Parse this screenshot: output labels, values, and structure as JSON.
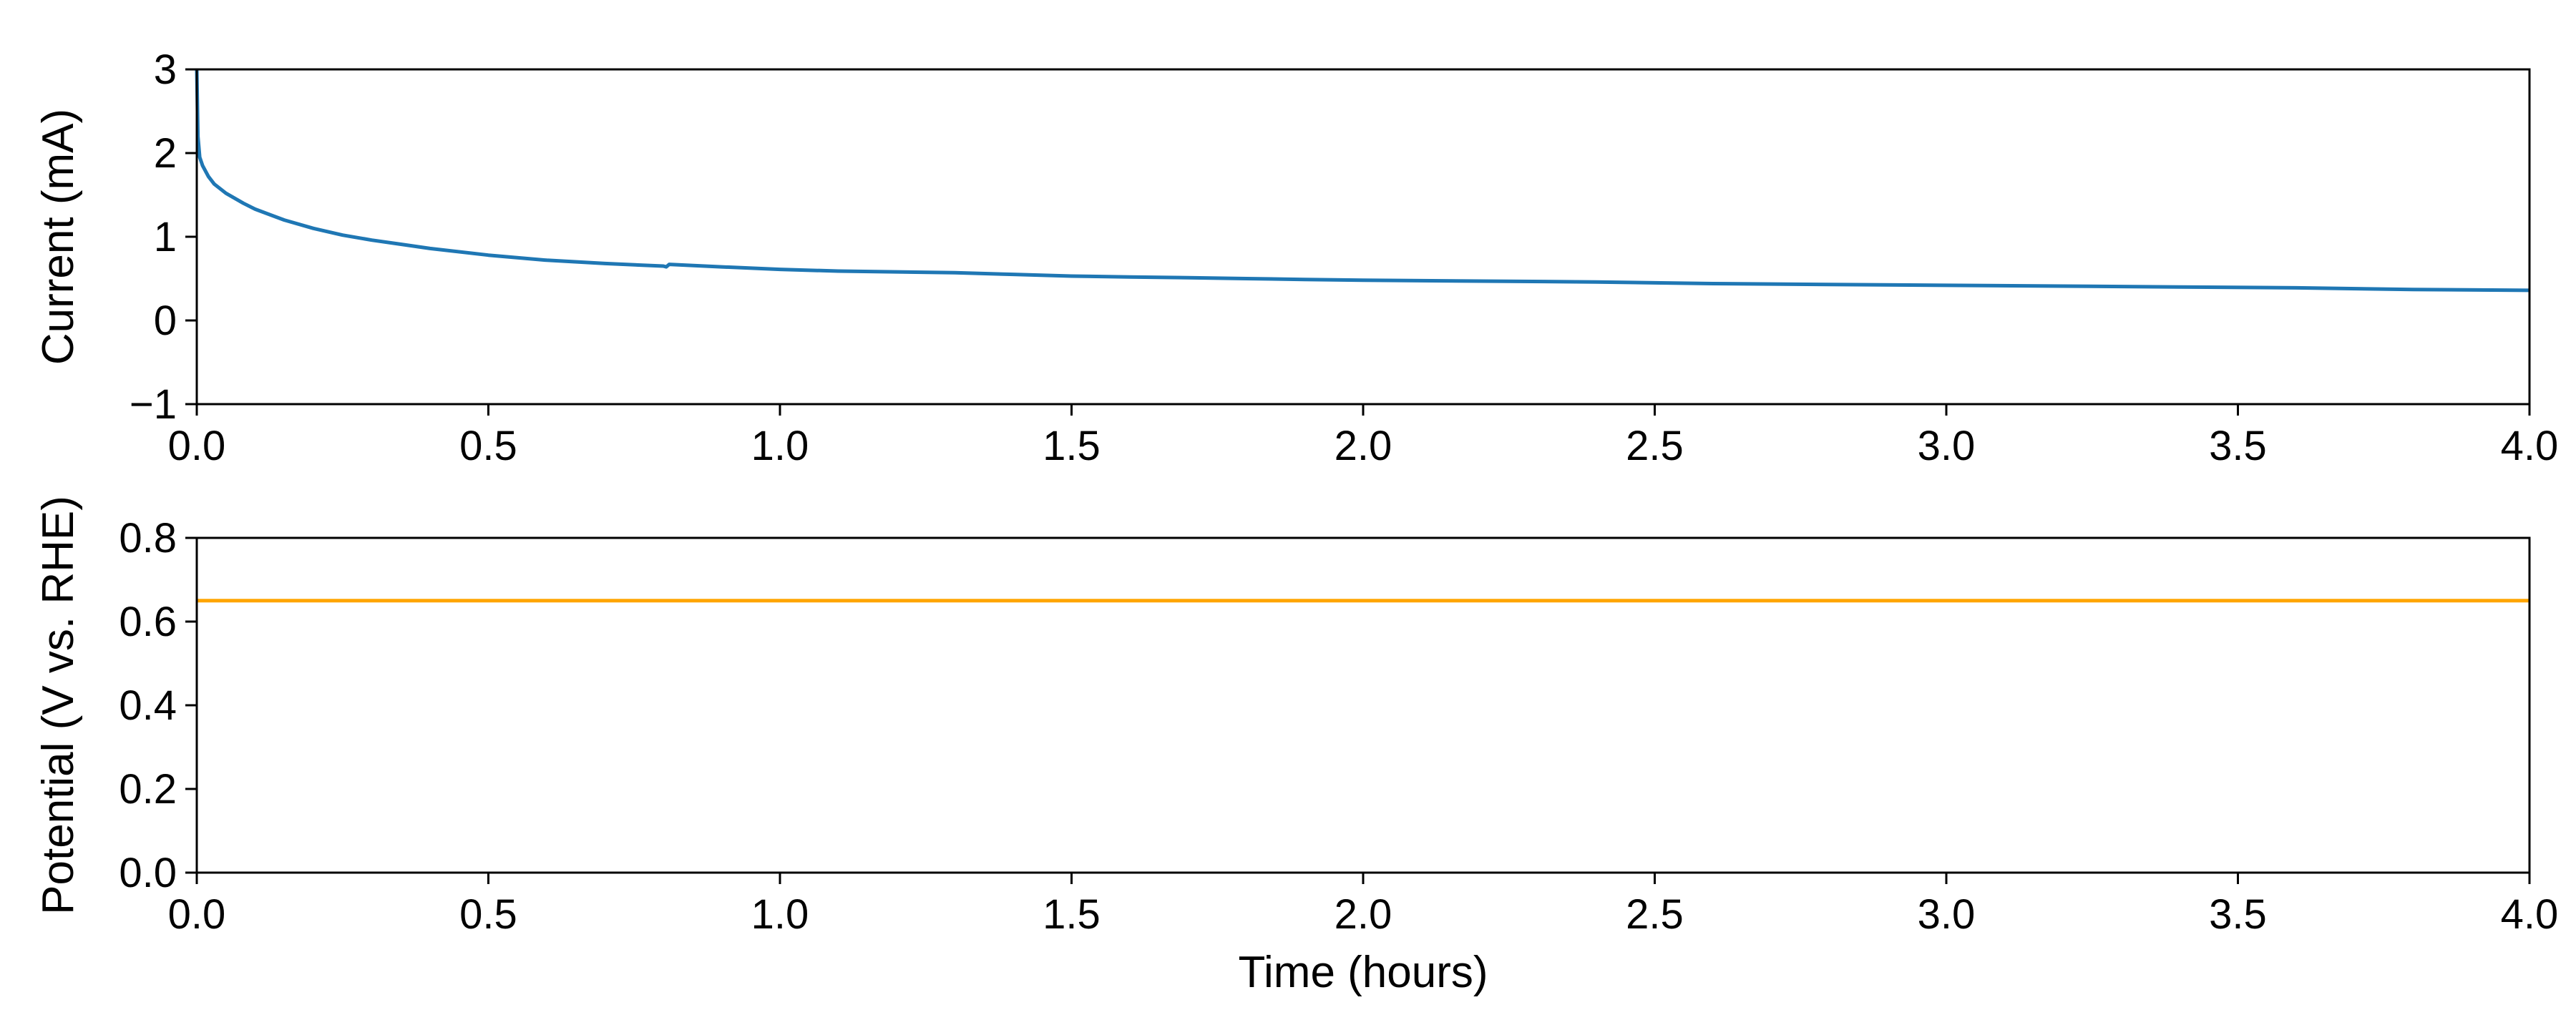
{
  "chart_data": [
    {
      "type": "line",
      "panel": "top",
      "title": "",
      "xlabel": "",
      "ylabel": "Current (mA)",
      "xlim": [
        0,
        4
      ],
      "ylim": [
        -1,
        3
      ],
      "xticks": [
        0,
        0.5,
        1,
        1.5,
        2,
        2.5,
        3,
        3.5,
        4
      ],
      "xtick_labels": [
        "0.0",
        "0.5",
        "1.0",
        "1.5",
        "2.0",
        "2.5",
        "3.0",
        "3.5",
        "4.0"
      ],
      "yticks": [
        -1,
        0,
        1,
        2,
        3
      ],
      "ytick_labels": [
        "−1",
        "0",
        "1",
        "2",
        "3"
      ],
      "grid": false,
      "series": [
        {
          "color": "#1f77b4",
          "x": [
            0,
            0.002,
            0.005,
            0.01,
            0.02,
            0.03,
            0.05,
            0.08,
            0.1,
            0.15,
            0.2,
            0.25,
            0.3,
            0.35,
            0.4,
            0.5,
            0.6,
            0.7,
            0.8,
            0.805,
            0.81,
            0.9,
            1.0,
            1.1,
            1.2,
            1.3,
            1.4,
            1.5,
            1.6,
            1.7,
            1.8,
            1.9,
            2.0,
            2.2,
            2.4,
            2.5,
            2.6,
            2.8,
            3.0,
            3.2,
            3.4,
            3.6,
            3.8,
            4.0
          ],
          "y": [
            3.0,
            2.2,
            1.95,
            1.85,
            1.72,
            1.63,
            1.52,
            1.4,
            1.33,
            1.2,
            1.1,
            1.02,
            0.96,
            0.91,
            0.86,
            0.78,
            0.72,
            0.68,
            0.65,
            0.64,
            0.67,
            0.64,
            0.61,
            0.59,
            0.58,
            0.57,
            0.55,
            0.53,
            0.52,
            0.51,
            0.5,
            0.49,
            0.48,
            0.47,
            0.46,
            0.45,
            0.44,
            0.43,
            0.42,
            0.41,
            0.4,
            0.39,
            0.37,
            0.36
          ]
        }
      ]
    },
    {
      "type": "line",
      "panel": "bottom",
      "title": "",
      "xlabel": "Time (hours)",
      "ylabel": "Potential (V vs. RHE)",
      "xlim": [
        0,
        4
      ],
      "ylim": [
        0,
        0.8
      ],
      "xticks": [
        0,
        0.5,
        1,
        1.5,
        2,
        2.5,
        3,
        3.5,
        4
      ],
      "xtick_labels": [
        "0.0",
        "0.5",
        "1.0",
        "1.5",
        "2.0",
        "2.5",
        "3.0",
        "3.5",
        "4.0"
      ],
      "yticks": [
        0,
        0.2,
        0.4,
        0.6,
        0.8
      ],
      "ytick_labels": [
        "0.0",
        "0.2",
        "0.4",
        "0.6",
        "0.8"
      ],
      "grid": false,
      "series": [
        {
          "color": "#ffa500",
          "x": [
            0,
            4
          ],
          "y": [
            0.65,
            0.65
          ]
        }
      ]
    }
  ]
}
